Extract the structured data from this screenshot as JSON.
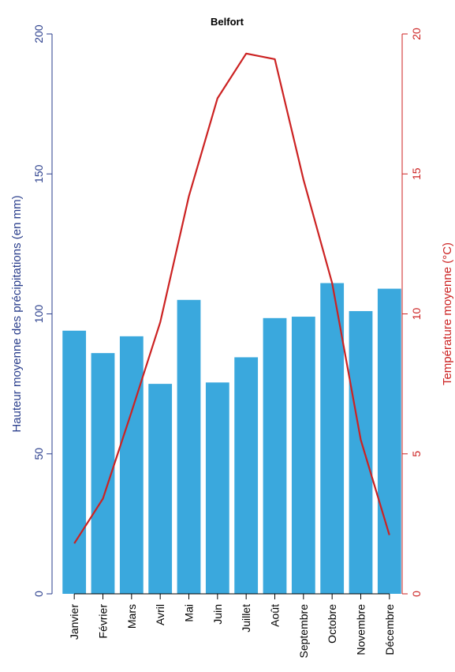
{
  "chart_data": {
    "type": "bar+line",
    "title": "Belfort",
    "categories": [
      "Janvier",
      "Février",
      "Mars",
      "Avril",
      "Mai",
      "Juin",
      "Juillet",
      "Août",
      "Septembre",
      "Octobre",
      "Novembre",
      "Décembre"
    ],
    "series": [
      {
        "type": "bar",
        "axis": "left",
        "values": [
          94,
          86,
          92,
          75,
          105,
          75.5,
          84.5,
          98.5,
          99,
          111,
          101,
          109
        ]
      },
      {
        "type": "line",
        "axis": "right",
        "values": [
          1.8,
          3.4,
          6.5,
          9.7,
          14.2,
          17.7,
          19.3,
          19.1,
          14.8,
          11.1,
          5.5,
          2.1
        ]
      }
    ],
    "ylabel_left": "Hauteur moyenne des précipitations (en mm)",
    "ylabel_right": "Température moyenne (°C)",
    "ylim_left": [
      0,
      200
    ],
    "ylim_right": [
      0,
      20
    ],
    "yticks_left": [
      "0",
      "50",
      "100",
      "150",
      "200"
    ],
    "yticks_right": [
      "0",
      "5",
      "10",
      "15",
      "20"
    ],
    "grid": false,
    "colors": {
      "bar": "#3aa8dd",
      "line": "#cc2222",
      "left_axis": "#2a3e8c",
      "right_axis": "#cc2222"
    }
  }
}
